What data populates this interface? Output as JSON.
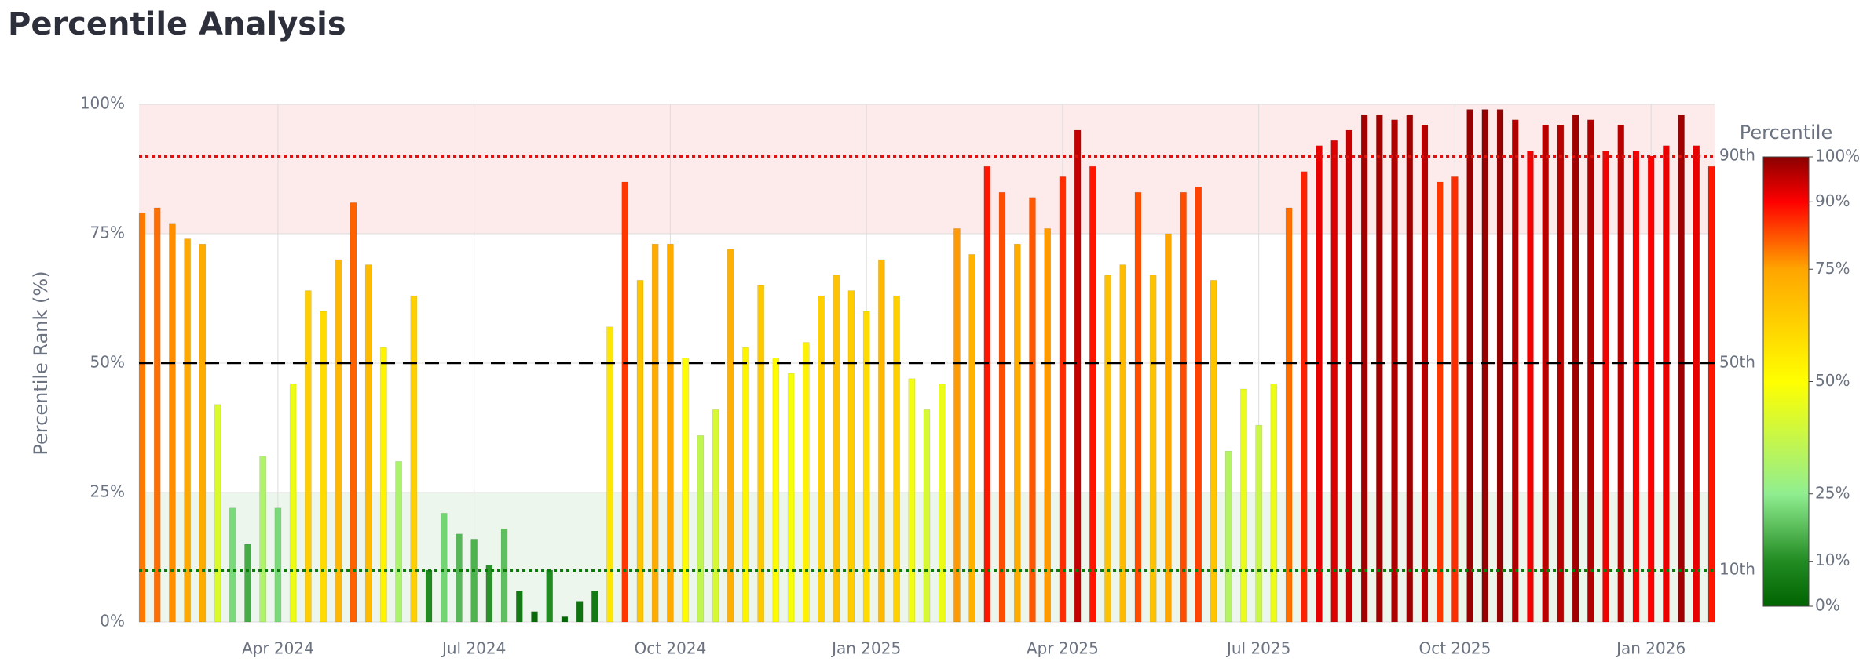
{
  "chart_data": {
    "type": "bar",
    "title": "Percentile Analysis",
    "y_label": "Percentile Rank (%)",
    "categories": [
      null,
      null,
      null,
      null,
      null,
      null,
      null,
      null,
      null,
      "Apr 2024",
      null,
      null,
      null,
      null,
      null,
      null,
      null,
      null,
      null,
      null,
      null,
      null,
      "Jul 2024",
      null,
      null,
      null,
      null,
      null,
      null,
      null,
      null,
      null,
      null,
      null,
      null,
      "Oct 2024",
      null,
      null,
      null,
      null,
      null,
      null,
      null,
      null,
      null,
      null,
      null,
      null,
      "Jan 2025",
      null,
      null,
      null,
      null,
      null,
      null,
      null,
      null,
      null,
      null,
      null,
      null,
      "Apr 2025",
      null,
      null,
      null,
      null,
      null,
      null,
      null,
      null,
      null,
      null,
      null,
      null,
      "Jul 2025",
      null,
      null,
      null,
      null,
      null,
      null,
      null,
      null,
      null,
      null,
      null,
      null,
      "Oct 2025",
      null,
      null,
      null,
      null,
      null,
      null,
      null,
      null,
      null,
      null,
      null,
      null,
      "Jan 2026",
      null,
      null,
      null,
      null
    ],
    "values": [
      79,
      80,
      77,
      74,
      73,
      42,
      22,
      15,
      32,
      22,
      46,
      64,
      60,
      70,
      81,
      69,
      53,
      31,
      63,
      10,
      21,
      17,
      16,
      11,
      18,
      6,
      2,
      10,
      1,
      4,
      6,
      57,
      85,
      66,
      73,
      73,
      51,
      36,
      41,
      72,
      53,
      65,
      51,
      48,
      54,
      63,
      67,
      64,
      60,
      70,
      63,
      47,
      41,
      46,
      76,
      71,
      88,
      83,
      73,
      82,
      76,
      86,
      95,
      88,
      67,
      69,
      83,
      67,
      75,
      83,
      84,
      66,
      33,
      45,
      38,
      46,
      80,
      87,
      92,
      93,
      95,
      98,
      98,
      97,
      98,
      96,
      85,
      86,
      99,
      99,
      99,
      97,
      91,
      96,
      96,
      98,
      97,
      91,
      96,
      91,
      90,
      92,
      98,
      92,
      88
    ],
    "ylim": [
      0,
      100
    ],
    "yticks": [
      {
        "value": 0,
        "label": "0%"
      },
      {
        "value": 25,
        "label": "25%"
      },
      {
        "value": 50,
        "label": "50%"
      },
      {
        "value": 75,
        "label": "75%"
      },
      {
        "value": 100,
        "label": "100%"
      }
    ],
    "grid": true,
    "bands": [
      {
        "from": 75,
        "to": 100,
        "color": "#fdeaea"
      },
      {
        "from": 0,
        "to": 25,
        "color": "#ecf6ec"
      }
    ],
    "reference_lines": [
      {
        "value": 90,
        "label": "90th",
        "color": "#e01010",
        "dash": "dotted"
      },
      {
        "value": 50,
        "label": "50th",
        "color": "#000000",
        "dash": "dashed"
      },
      {
        "value": 10,
        "label": "10th",
        "color": "#0a7a0a",
        "dash": "dotted"
      }
    ],
    "colorbar": {
      "title": "Percentile",
      "colorscale": [
        [
          0,
          "#006400"
        ],
        [
          10,
          "#228b22"
        ],
        [
          25,
          "#90ee90"
        ],
        [
          50,
          "#ffff00"
        ],
        [
          75,
          "#ffa500"
        ],
        [
          90,
          "#ff0000"
        ],
        [
          100,
          "#8b0000"
        ]
      ],
      "ticks": [
        {
          "value": 0,
          "label": "0%"
        },
        {
          "value": 10,
          "label": "10%"
        },
        {
          "value": 25,
          "label": "25%"
        },
        {
          "value": 50,
          "label": "50%"
        },
        {
          "value": 75,
          "label": "75%"
        },
        {
          "value": 90,
          "label": "90%"
        },
        {
          "value": 100,
          "label": "100%"
        }
      ]
    }
  }
}
